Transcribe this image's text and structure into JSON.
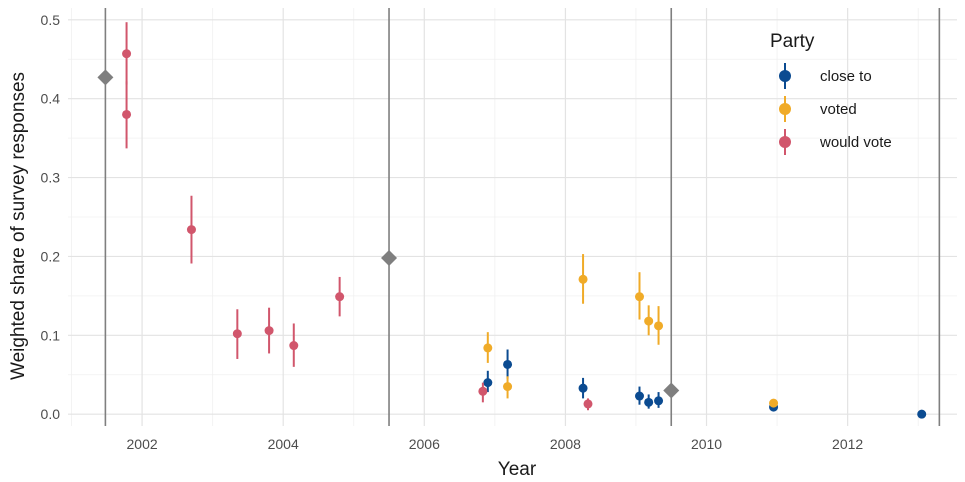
{
  "chart_data": {
    "type": "scatter",
    "xlabel": "Year",
    "ylabel": "Weighted share of survey responses",
    "xlim": [
      2000.95,
      2013.55
    ],
    "ylim": [
      -0.015,
      0.515
    ],
    "x_ticks": [
      2002,
      2004,
      2006,
      2008,
      2010,
      2012
    ],
    "x_tick_labels": [
      "2002",
      "2004",
      "2006",
      "2008",
      "2010",
      "2012"
    ],
    "y_ticks": [
      0.0,
      0.1,
      0.2,
      0.3,
      0.4,
      0.5
    ],
    "y_tick_labels": [
      "0.0",
      "0.1",
      "0.2",
      "0.3",
      "0.4",
      "0.5"
    ],
    "grid": true,
    "legend": {
      "title": "Party",
      "position": "top-right",
      "entries": [
        "close to",
        "voted",
        "would vote"
      ]
    },
    "vertical_lines": [
      2001.48,
      2005.5,
      2009.5,
      2013.3
    ],
    "reference_points": [
      {
        "x": 2001.48,
        "y": 0.427
      },
      {
        "x": 2005.5,
        "y": 0.198
      },
      {
        "x": 2009.5,
        "y": 0.03
      }
    ],
    "series": [
      {
        "name": "close to",
        "color": "#0B4B91",
        "points": [
          {
            "x": 2006.9,
            "y": 0.04,
            "lo": 0.028,
            "hi": 0.055
          },
          {
            "x": 2007.18,
            "y": 0.063,
            "lo": 0.045,
            "hi": 0.082
          },
          {
            "x": 2008.25,
            "y": 0.033,
            "lo": 0.02,
            "hi": 0.046
          },
          {
            "x": 2009.05,
            "y": 0.023,
            "lo": 0.012,
            "hi": 0.035
          },
          {
            "x": 2009.18,
            "y": 0.015,
            "lo": 0.007,
            "hi": 0.025
          },
          {
            "x": 2009.32,
            "y": 0.017,
            "lo": 0.008,
            "hi": 0.028
          },
          {
            "x": 2010.95,
            "y": 0.009,
            "lo": 0.005,
            "hi": 0.013
          },
          {
            "x": 2013.05,
            "y": 0.0,
            "lo": 0.0,
            "hi": 0.0
          }
        ]
      },
      {
        "name": "voted",
        "color": "#F0AB28",
        "points": [
          {
            "x": 2006.9,
            "y": 0.084,
            "lo": 0.065,
            "hi": 0.104
          },
          {
            "x": 2007.18,
            "y": 0.035,
            "lo": 0.02,
            "hi": 0.048
          },
          {
            "x": 2008.25,
            "y": 0.171,
            "lo": 0.14,
            "hi": 0.203
          },
          {
            "x": 2009.05,
            "y": 0.149,
            "lo": 0.12,
            "hi": 0.18
          },
          {
            "x": 2009.18,
            "y": 0.118,
            "lo": 0.1,
            "hi": 0.138
          },
          {
            "x": 2009.32,
            "y": 0.112,
            "lo": 0.088,
            "hi": 0.137
          },
          {
            "x": 2010.95,
            "y": 0.014,
            "lo": 0.009,
            "hi": 0.019
          }
        ]
      },
      {
        "name": "would vote",
        "color": "#D1566C",
        "points": [
          {
            "x": 2001.78,
            "y": 0.457,
            "lo": 0.418,
            "hi": 0.497
          },
          {
            "x": 2001.78,
            "y": 0.38,
            "lo": 0.337,
            "hi": 0.422
          },
          {
            "x": 2002.7,
            "y": 0.234,
            "lo": 0.191,
            "hi": 0.277
          },
          {
            "x": 2003.35,
            "y": 0.102,
            "lo": 0.07,
            "hi": 0.133
          },
          {
            "x": 2003.8,
            "y": 0.106,
            "lo": 0.077,
            "hi": 0.135
          },
          {
            "x": 2004.15,
            "y": 0.087,
            "lo": 0.06,
            "hi": 0.115
          },
          {
            "x": 2004.8,
            "y": 0.149,
            "lo": 0.124,
            "hi": 0.174
          },
          {
            "x": 2006.83,
            "y": 0.029,
            "lo": 0.015,
            "hi": 0.04
          },
          {
            "x": 2008.32,
            "y": 0.013,
            "lo": 0.005,
            "hi": 0.02
          }
        ]
      }
    ]
  }
}
